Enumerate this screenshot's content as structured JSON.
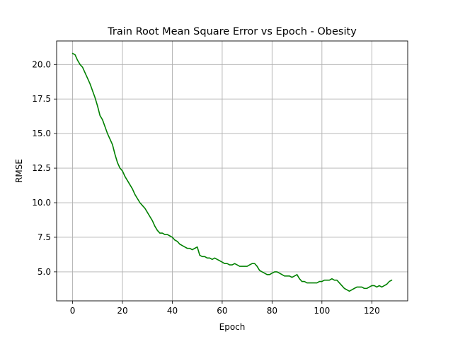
{
  "chart_data": {
    "type": "line",
    "title": "Train Root Mean Square Error vs Epoch - Obesity",
    "xlabel": "Epoch",
    "ylabel": "RMSE",
    "xlim": [
      -6.4,
      134.4
    ],
    "ylim": [
      2.9,
      21.7
    ],
    "xticks": [
      0,
      20,
      40,
      60,
      80,
      100,
      120
    ],
    "xtick_labels": [
      "0",
      "20",
      "40",
      "60",
      "80",
      "100",
      "120"
    ],
    "yticks": [
      5.0,
      7.5,
      10.0,
      12.5,
      15.0,
      17.5,
      20.0
    ],
    "ytick_labels": [
      "5.0",
      "7.5",
      "10.0",
      "12.5",
      "15.0",
      "17.5",
      "20.0"
    ],
    "grid": true,
    "series": [
      {
        "color": "#008000",
        "x": [
          0,
          1,
          2,
          3,
          4,
          5,
          6,
          7,
          8,
          9,
          10,
          11,
          12,
          13,
          14,
          15,
          16,
          17,
          18,
          19,
          20,
          21,
          22,
          23,
          24,
          25,
          26,
          27,
          28,
          29,
          30,
          31,
          32,
          33,
          34,
          35,
          36,
          37,
          38,
          39,
          40,
          41,
          42,
          43,
          44,
          45,
          46,
          47,
          48,
          49,
          50,
          51,
          52,
          53,
          54,
          55,
          56,
          57,
          58,
          59,
          60,
          61,
          62,
          63,
          64,
          65,
          66,
          67,
          68,
          69,
          70,
          71,
          72,
          73,
          74,
          75,
          76,
          77,
          78,
          79,
          80,
          81,
          82,
          83,
          84,
          85,
          86,
          87,
          88,
          89,
          90,
          91,
          92,
          93,
          94,
          95,
          96,
          97,
          98,
          99,
          100,
          101,
          102,
          103,
          104,
          105,
          106,
          107,
          108,
          109,
          110,
          111,
          112,
          113,
          114,
          115,
          116,
          117,
          118,
          119,
          120,
          121,
          122,
          123,
          124,
          125,
          126,
          127,
          128
        ],
        "values": [
          20.8,
          20.7,
          20.3,
          20.0,
          19.8,
          19.4,
          19.0,
          18.6,
          18.1,
          17.6,
          17.0,
          16.3,
          16.0,
          15.5,
          15.0,
          14.6,
          14.2,
          13.5,
          12.9,
          12.5,
          12.3,
          11.9,
          11.6,
          11.3,
          11.0,
          10.6,
          10.3,
          10.0,
          9.8,
          9.6,
          9.3,
          9.0,
          8.7,
          8.3,
          8.0,
          7.8,
          7.8,
          7.7,
          7.7,
          7.6,
          7.5,
          7.3,
          7.2,
          7.0,
          6.9,
          6.8,
          6.7,
          6.7,
          6.6,
          6.7,
          6.8,
          6.2,
          6.1,
          6.1,
          6.0,
          6.0,
          5.9,
          6.0,
          5.9,
          5.8,
          5.7,
          5.6,
          5.6,
          5.5,
          5.5,
          5.6,
          5.5,
          5.4,
          5.4,
          5.4,
          5.4,
          5.5,
          5.6,
          5.6,
          5.4,
          5.1,
          5.0,
          4.9,
          4.8,
          4.8,
          4.9,
          5.0,
          5.0,
          4.9,
          4.8,
          4.7,
          4.7,
          4.7,
          4.6,
          4.7,
          4.8,
          4.5,
          4.3,
          4.3,
          4.2,
          4.2,
          4.2,
          4.2,
          4.2,
          4.3,
          4.3,
          4.4,
          4.4,
          4.4,
          4.5,
          4.4,
          4.4,
          4.2,
          4.0,
          3.8,
          3.7,
          3.6,
          3.7,
          3.8,
          3.9,
          3.9,
          3.9,
          3.8,
          3.8,
          3.9,
          4.0,
          4.0,
          3.9,
          4.0,
          3.9,
          4.0,
          4.1,
          4.3,
          4.4
        ]
      }
    ]
  }
}
